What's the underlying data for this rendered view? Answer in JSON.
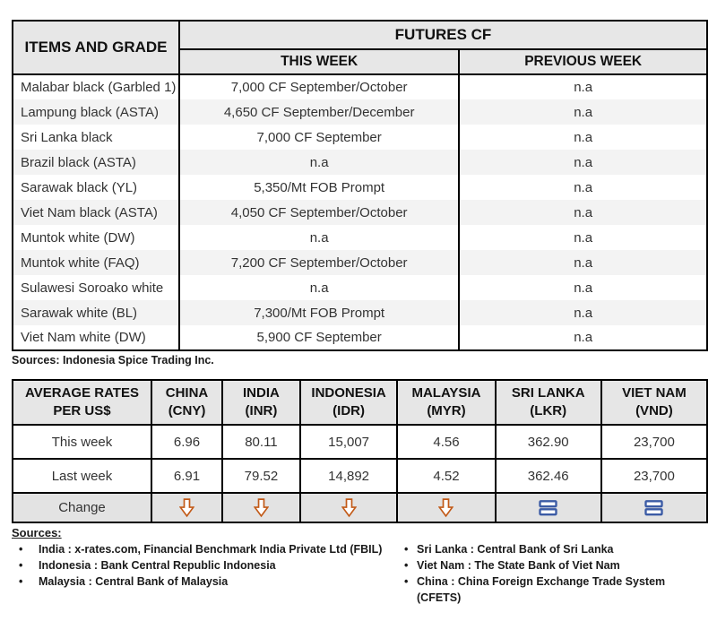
{
  "futures_table": {
    "col1_header": "ITEMS AND GRADE",
    "group_header": "FUTURES CF",
    "sub_headers": [
      "THIS WEEK",
      "PREVIOUS WEEK"
    ],
    "rows": [
      {
        "item": "Malabar black (Garbled 1)",
        "this_week": "7,000 CF September/October",
        "previous_week": "n.a"
      },
      {
        "item": "Lampung black (ASTA)",
        "this_week": "4,650 CF September/December",
        "previous_week": "n.a"
      },
      {
        "item": "Sri Lanka black",
        "this_week": "7,000 CF September",
        "previous_week": "n.a"
      },
      {
        "item": "Brazil black (ASTA)",
        "this_week": "n.a",
        "previous_week": "n.a"
      },
      {
        "item": "Sarawak black (YL)",
        "this_week": "5,350/Mt FOB Prompt",
        "previous_week": "n.a"
      },
      {
        "item": "Viet Nam black (ASTA)",
        "this_week": "4,050 CF September/October",
        "previous_week": "n.a"
      },
      {
        "item": "Muntok white (DW)",
        "this_week": "n.a",
        "previous_week": "n.a"
      },
      {
        "item": "Muntok white (FAQ)",
        "this_week": "7,200 CF September/October",
        "previous_week": "n.a"
      },
      {
        "item": "Sulawesi Soroako white",
        "this_week": "n.a",
        "previous_week": "n.a"
      },
      {
        "item": "Sarawak  white (BL)",
        "this_week": "7,300/Mt FOB Prompt",
        "previous_week": "n.a"
      },
      {
        "item": "Viet Nam white (DW)",
        "this_week": "5,900 CF September",
        "previous_week": "n.a"
      }
    ],
    "source_note": "Sources: Indonesia Spice Trading Inc."
  },
  "rates_table": {
    "row_header": {
      "line1": "AVERAGE RATES",
      "line2": "PER US$"
    },
    "columns": [
      {
        "country": "CHINA",
        "currency": "(CNY)"
      },
      {
        "country": "INDIA",
        "currency": "(INR)"
      },
      {
        "country": "INDONESIA",
        "currency": "(IDR)"
      },
      {
        "country": "MALAYSIA",
        "currency": "(MYR)"
      },
      {
        "country": "SRI LANKA",
        "currency": "(LKR)"
      },
      {
        "country": "VIET NAM",
        "currency": "(VND)"
      }
    ],
    "rows": [
      {
        "label": "This week",
        "values": [
          "6.96",
          "80.11",
          "15,007",
          "4.56",
          "362.90",
          "23,700"
        ]
      },
      {
        "label": "Last week",
        "values": [
          "6.91",
          "79.52",
          "14,892",
          "4.52",
          "362.46",
          "23,700"
        ]
      }
    ],
    "change_label": "Change",
    "change_icons": [
      "down",
      "down",
      "down",
      "down",
      "equal",
      "equal"
    ]
  },
  "sources": {
    "title": "Sources:",
    "left": [
      "India : x-rates.com, Financial Benchmark India Private Ltd (FBIL)",
      "Indonesia : Bank Central Republic Indonesia",
      "Malaysia : Central Bank of Malaysia"
    ],
    "right": [
      "Sri Lanka : Central Bank of Sri Lanka",
      "Viet Nam : The State Bank of Viet Nam",
      "China : China Foreign Exchange Trade System (CFETS)"
    ]
  },
  "colors": {
    "header_bg": "#e7e7e7",
    "stripe_bg": "#f3f3f3",
    "change_row_bg": "#e3e3e3",
    "border": "#000000",
    "down_arrow": "#c25a18",
    "equal_icon": "#3b5ba5"
  }
}
